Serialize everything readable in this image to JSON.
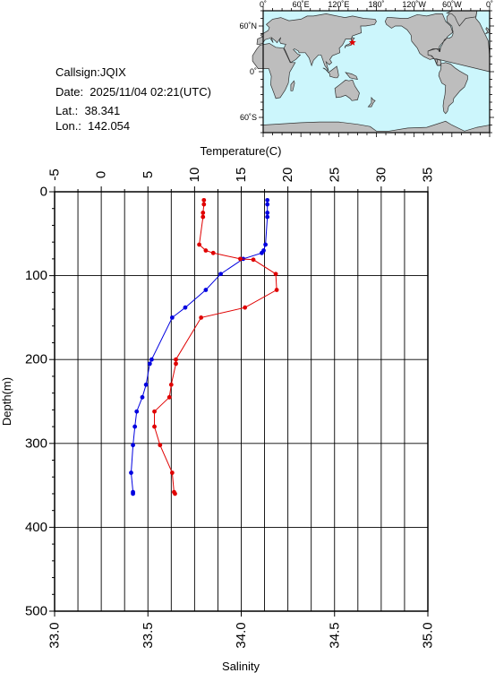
{
  "station": {
    "callsign": "Callsign:JQIX",
    "date": "Date:  2025/11/04 02:21(UTC)",
    "lat": "Lat.:  38.341",
    "lon": "Lon.:  142.054"
  },
  "map": {
    "lon_labels": [
      "0˚",
      "60˚E",
      "120˚E",
      "180˚",
      "120˚W",
      "60˚W",
      "0˚"
    ],
    "lat_labels": [
      "60˚N",
      "0˚",
      "60˚S"
    ],
    "ocean_color": "#ccf6fc",
    "land_color": "#bdbdbd",
    "marker_color": "#e00000",
    "marker_lon": 142.054,
    "marker_lat": 38.341
  },
  "chart_data": {
    "type": "line",
    "top_axis_label": "Temperature(C)",
    "bottom_axis_label": "Salinity",
    "ylabel": "Depth(m)",
    "temperature_range": [
      -5,
      35
    ],
    "temperature_ticks": [
      "-5",
      "0",
      "5",
      "10",
      "15",
      "20",
      "25",
      "30",
      "35"
    ],
    "salinity_range": [
      33.0,
      35.0
    ],
    "salinity_ticks": [
      "33.0",
      "33.5",
      "34.0",
      "34.5",
      "35.0"
    ],
    "depth_range": [
      0,
      500
    ],
    "depth_ticks": [
      "0",
      "100",
      "200",
      "300",
      "400",
      "500"
    ],
    "grid": true,
    "temperature_color": "#e00000",
    "salinity_color": "#0000e0",
    "temperature": [
      {
        "depth": 10,
        "value": 11.0
      },
      {
        "depth": 15,
        "value": 11.0
      },
      {
        "depth": 25,
        "value": 10.9
      },
      {
        "depth": 30,
        "value": 10.9
      },
      {
        "depth": 63,
        "value": 10.5
      },
      {
        "depth": 70,
        "value": 11.2
      },
      {
        "depth": 73,
        "value": 12.0
      },
      {
        "depth": 80,
        "value": 14.9
      },
      {
        "depth": 81,
        "value": 16.3
      },
      {
        "depth": 98,
        "value": 18.7
      },
      {
        "depth": 117,
        "value": 18.8
      },
      {
        "depth": 138,
        "value": 15.4
      },
      {
        "depth": 150,
        "value": 10.7
      },
      {
        "depth": 200,
        "value": 8.0
      },
      {
        "depth": 205,
        "value": 8.0
      },
      {
        "depth": 230,
        "value": 7.5
      },
      {
        "depth": 245,
        "value": 7.3
      },
      {
        "depth": 262,
        "value": 5.7
      },
      {
        "depth": 280,
        "value": 5.7
      },
      {
        "depth": 302,
        "value": 6.3
      },
      {
        "depth": 335,
        "value": 7.6
      },
      {
        "depth": 358,
        "value": 7.8
      },
      {
        "depth": 360,
        "value": 7.9
      }
    ],
    "salinity": [
      {
        "depth": 10,
        "value": 34.14
      },
      {
        "depth": 15,
        "value": 34.14
      },
      {
        "depth": 25,
        "value": 34.14
      },
      {
        "depth": 30,
        "value": 34.14
      },
      {
        "depth": 63,
        "value": 34.13
      },
      {
        "depth": 70,
        "value": 34.12
      },
      {
        "depth": 73,
        "value": 34.11
      },
      {
        "depth": 80,
        "value": 34.01
      },
      {
        "depth": 98,
        "value": 33.89
      },
      {
        "depth": 117,
        "value": 33.81
      },
      {
        "depth": 138,
        "value": 33.7
      },
      {
        "depth": 150,
        "value": 33.63
      },
      {
        "depth": 200,
        "value": 33.52
      },
      {
        "depth": 205,
        "value": 33.51
      },
      {
        "depth": 230,
        "value": 33.49
      },
      {
        "depth": 245,
        "value": 33.47
      },
      {
        "depth": 262,
        "value": 33.44
      },
      {
        "depth": 280,
        "value": 33.43
      },
      {
        "depth": 302,
        "value": 33.42
      },
      {
        "depth": 335,
        "value": 33.41
      },
      {
        "depth": 358,
        "value": 33.42
      },
      {
        "depth": 360,
        "value": 33.42
      }
    ]
  }
}
